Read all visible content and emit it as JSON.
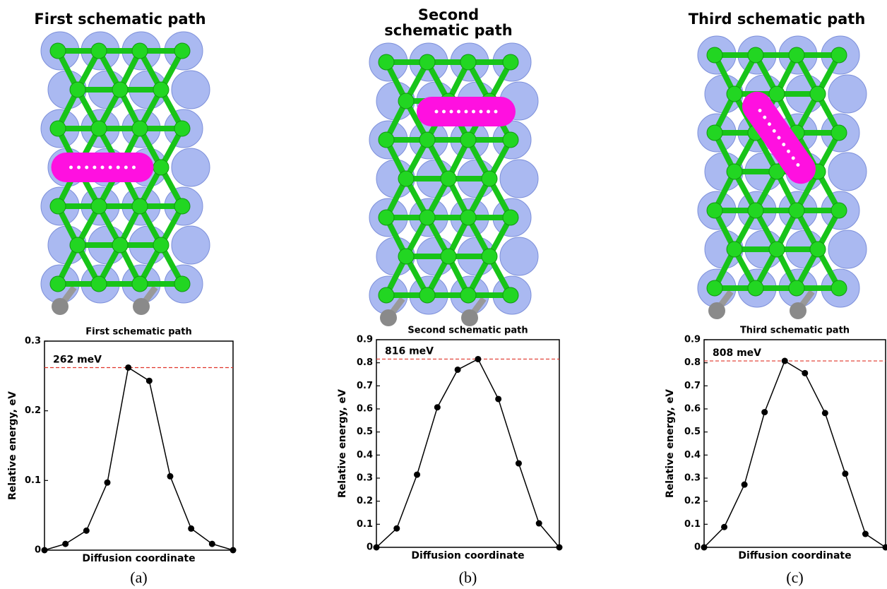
{
  "chart_data": [
    {
      "type": "line",
      "structure_title": "First schematic path",
      "title": "First schematic path",
      "panel_label": "(a)",
      "xlabel": "Diffusion coordinate",
      "ylabel": "Relative energy, eV",
      "categories": [
        null,
        null,
        null,
        null,
        null,
        null,
        null,
        null,
        null,
        null
      ],
      "values": [
        0,
        0.009,
        0.028,
        0.097,
        0.262,
        0.243,
        0.106,
        0.031,
        0.009,
        0
      ],
      "color": "#000000",
      "ylim": [
        0,
        0.3
      ],
      "yticks": [
        0,
        0.1,
        0.2,
        0.3
      ],
      "reference_line": {
        "value": 0.262,
        "label": "262 meV",
        "color": "#e0342a"
      }
    },
    {
      "type": "line",
      "structure_title": "Second schematic path",
      "title": "Second schematic path",
      "panel_label": "(b)",
      "xlabel": "Diffusion coordinate",
      "ylabel": "Relative energy, eV",
      "categories": [
        null,
        null,
        null,
        null,
        null,
        null,
        null,
        null,
        null,
        null
      ],
      "values": [
        0,
        0.082,
        0.315,
        0.607,
        0.77,
        0.816,
        0.643,
        0.364,
        0.104,
        0
      ],
      "color": "#000000",
      "ylim": [
        0,
        0.9
      ],
      "yticks": [
        0,
        0.1,
        0.2,
        0.3,
        0.4,
        0.5,
        0.6,
        0.7,
        0.8,
        0.9
      ],
      "reference_line": {
        "value": 0.816,
        "label": "816 meV",
        "color": "#e0342a"
      }
    },
    {
      "type": "line",
      "structure_title": "Third schematic path",
      "title": "Third schematic path",
      "panel_label": "(c)",
      "xlabel": "Diffusion coordinate",
      "ylabel": "Relative energy, eV",
      "categories": [
        null,
        null,
        null,
        null,
        null,
        null,
        null,
        null,
        null,
        null
      ],
      "values": [
        0,
        0.088,
        0.272,
        0.586,
        0.808,
        0.755,
        0.582,
        0.319,
        0.058,
        0
      ],
      "color": "#000000",
      "ylim": [
        0,
        0.9
      ],
      "yticks": [
        0,
        0.1,
        0.2,
        0.3,
        0.4,
        0.5,
        0.6,
        0.7,
        0.8,
        0.9
      ],
      "reference_line": {
        "value": 0.808,
        "label": "808 meV",
        "color": "#e0342a"
      }
    }
  ]
}
